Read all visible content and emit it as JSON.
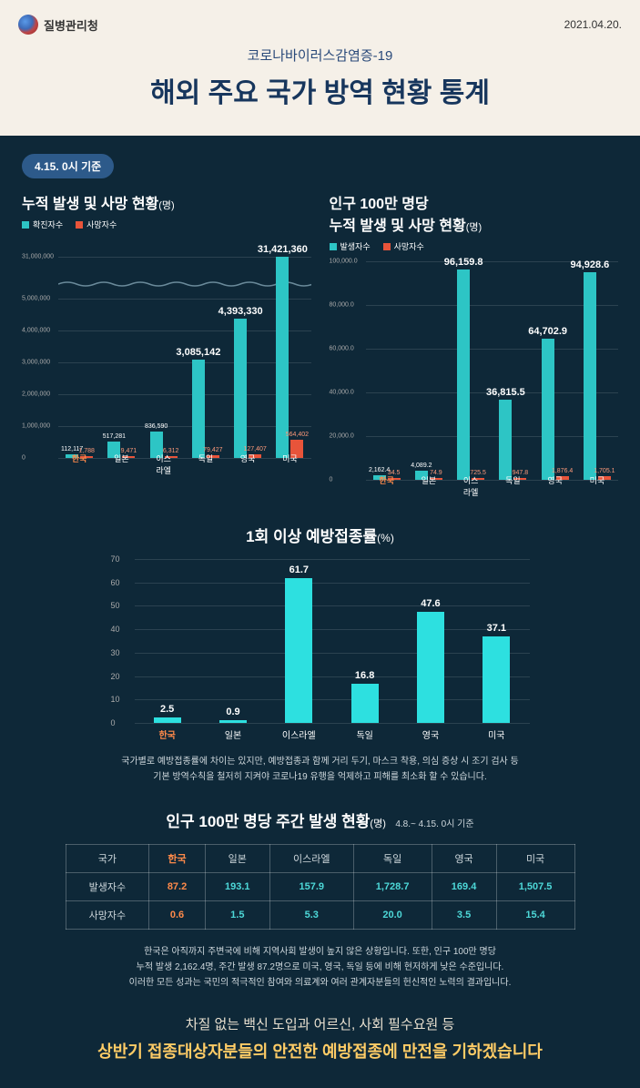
{
  "header": {
    "org": "질병관리청",
    "date": "2021.04.20.",
    "subtitle": "코로나바이러스감염증-19",
    "title": "해외 주요 국가 방역 현황 통계"
  },
  "badge": "4.15. 0시 기준",
  "chart1": {
    "type": "bar",
    "title": "누적 발생 및 사망 현황",
    "unit": "(명)",
    "legend": [
      {
        "label": "확진자수",
        "color": "#2dc5c5"
      },
      {
        "label": "사망자수",
        "color": "#e8543a"
      }
    ],
    "categories": [
      "한국",
      "일본",
      "이스\n라엘",
      "독일",
      "영국",
      "미국"
    ],
    "hl_index": 0,
    "cases": [
      112117,
      517281,
      836590,
      3085142,
      4393330,
      31421360
    ],
    "deaths": [
      1788,
      9471,
      6312,
      79427,
      127407,
      564402
    ],
    "y_ticks": [
      0,
      1000000,
      2000000,
      3000000,
      4000000,
      5000000,
      31000000
    ],
    "y_labels": [
      "0",
      "1,000,000",
      "2,000,000",
      "3,000,000",
      "4,000,000",
      "5,000,000",
      "31,000,000"
    ],
    "break_at": 5,
    "max_display": 5500000,
    "top_segment": 31421360,
    "colors": {
      "cases": "#2dc5c5",
      "deaths": "#e8543a"
    },
    "value_labels_cases": [
      "112,117",
      "517,281",
      "836,590",
      "3,085,142",
      "4,393,330",
      "31,421,360"
    ],
    "value_labels_deaths": [
      "1,788",
      "9,471",
      "6,312",
      "79,427",
      "127,407",
      "564,402"
    ]
  },
  "chart2": {
    "type": "bar",
    "title_l1": "인구 100만 명당",
    "title_l2": "누적 발생 및 사망 현황",
    "unit": "(명)",
    "legend": [
      {
        "label": "발생자수",
        "color": "#2dc5c5"
      },
      {
        "label": "사망자수",
        "color": "#e8543a"
      }
    ],
    "categories": [
      "한국",
      "일본",
      "이스\n라엘",
      "독일",
      "영국",
      "미국"
    ],
    "hl_index": 0,
    "cases": [
      2162.4,
      4089.2,
      96159.8,
      36815.5,
      64702.9,
      94928.6
    ],
    "deaths": [
      34.5,
      74.9,
      725.5,
      947.8,
      1876.4,
      1705.1
    ],
    "y_ticks": [
      0,
      20000,
      40000,
      60000,
      80000,
      100000
    ],
    "y_labels": [
      "0",
      "20,000.0",
      "40,000.0",
      "60,000.0",
      "80,000.0",
      "100,000.0"
    ],
    "max": 100000,
    "colors": {
      "cases": "#2dc5c5",
      "deaths": "#e8543a"
    },
    "value_labels_cases": [
      "2,162.4",
      "4,089.2",
      "96,159.8",
      "36,815.5",
      "64,702.9",
      "94,928.6"
    ],
    "value_labels_deaths": [
      "34.5",
      "74.9",
      "725.5",
      "947.8",
      "1,876.4",
      "1,705.1"
    ]
  },
  "vax": {
    "type": "bar",
    "title": "1회 이상 예방접종률",
    "unit": "(%)",
    "categories": [
      "한국",
      "일본",
      "이스라엘",
      "독일",
      "영국",
      "미국"
    ],
    "hl_index": 0,
    "values": [
      2.5,
      0.9,
      61.7,
      16.8,
      47.6,
      37.1
    ],
    "y_ticks": [
      0,
      10,
      20,
      30,
      40,
      50,
      60,
      70
    ],
    "max": 70,
    "color": "#2de0e0",
    "value_labels": [
      "2.5",
      "0.9",
      "61.7",
      "16.8",
      "47.6",
      "37.1"
    ]
  },
  "note1_l1": "국가별로 예방접종률에 차이는 있지만, 예방접종과 함께 거리 두기, 마스크 착용, 의심 증상 시 조기 검사 등",
  "note1_l2": "기본 방역수칙을 철저히 지켜야 코로나19 유행을 억제하고 피해를 최소화 할 수 있습니다.",
  "table": {
    "title": "인구 100만 명당 주간 발생 현황",
    "unit": "(명)",
    "subtitle": "4.8.~ 4.15. 0시 기준",
    "cols": [
      "국가",
      "한국",
      "일본",
      "이스라엘",
      "독일",
      "영국",
      "미국"
    ],
    "hl_col": 1,
    "rows": [
      {
        "h": "발생자수",
        "v": [
          "87.2",
          "193.1",
          "157.9",
          "1,728.7",
          "169.4",
          "1,507.5"
        ]
      },
      {
        "h": "사망자수",
        "v": [
          "0.6",
          "1.5",
          "5.3",
          "20.0",
          "3.5",
          "15.4"
        ]
      }
    ]
  },
  "note2_l1": "한국은 아직까지 주변국에 비해 지역사회 발생이 높지 않은 상황입니다. 또한, 인구 100만 명당",
  "note2_l2": "누적 발생 2,162.4명, 주간 발생 87.2명으로 미국, 영국, 독일 등에 비해 현저하게 낮은 수준입니다.",
  "note2_l3": "이러한 모든 성과는 국민의 적극적인 참여와 의료계와 여러 관계자분들의 헌신적인 노력의 결과입니다.",
  "footer": {
    "l1": "차질 없는 백신 도입과 어르신, 사회 필수요원 등",
    "l2": "상반기 접종대상자분들의 안전한 예방접종에 만전을 기하겠습니다"
  }
}
